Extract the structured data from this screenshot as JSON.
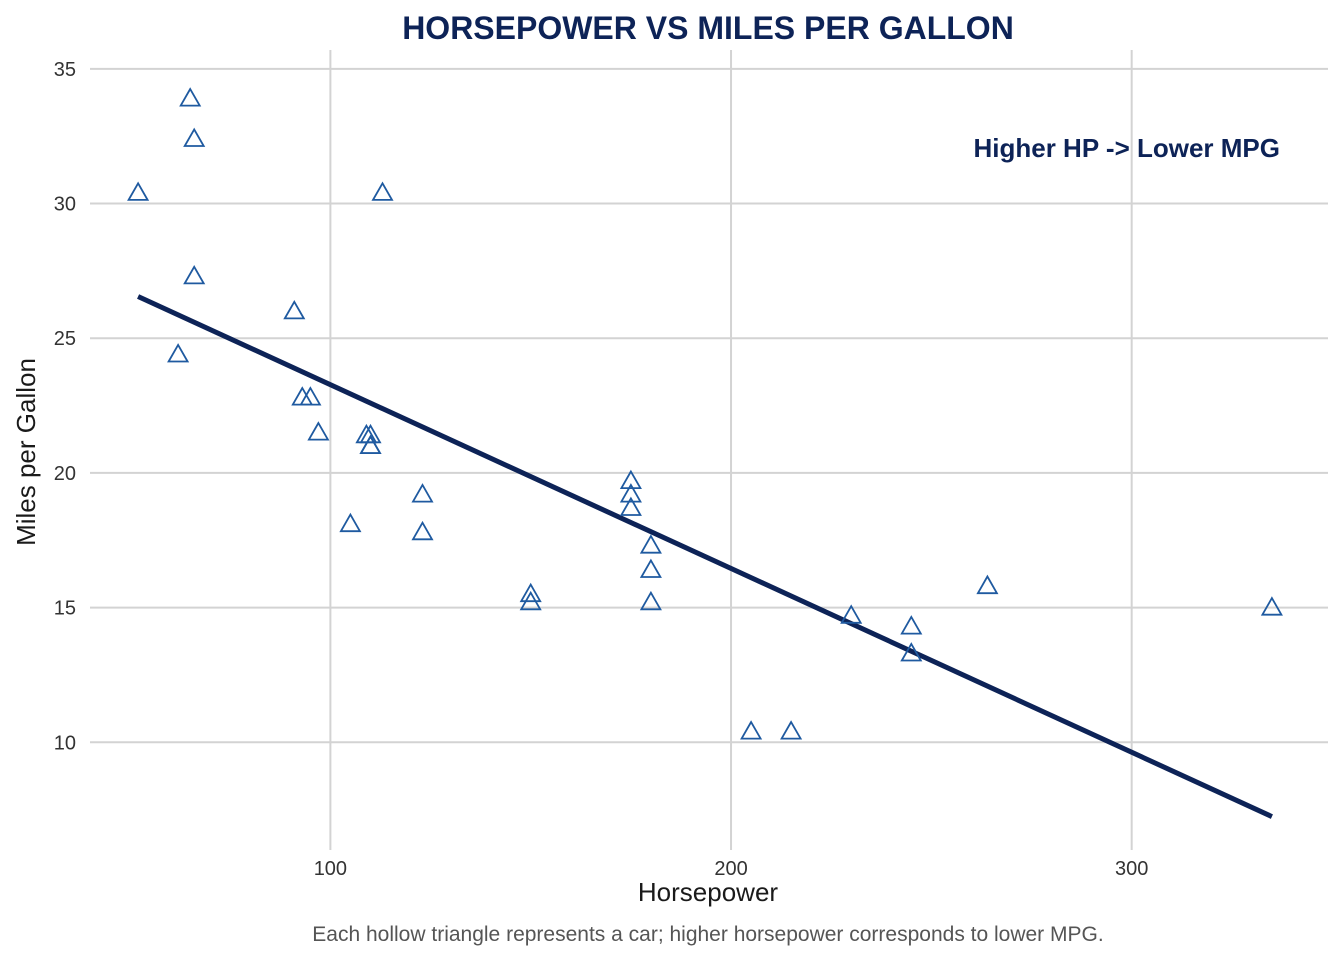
{
  "chart_data": {
    "type": "scatter",
    "title": "HORSEPOWER VS MILES PER GALLON",
    "xlabel": "Horsepower",
    "ylabel": "Miles per Gallon",
    "caption": "Each hollow triangle represents a car; higher horsepower corresponds to lower MPG.",
    "annotation": "Higher HP -> Lower MPG",
    "xlim": [
      40,
      349
    ],
    "ylim": [
      6,
      35.7
    ],
    "xticks": [
      100,
      200,
      300
    ],
    "yticks": [
      10,
      15,
      20,
      25,
      30,
      35
    ],
    "grid": true,
    "marker": "hollow-triangle",
    "colors": {
      "points": "#1f5aa0",
      "trend": "#0d2357",
      "title": "#0d2357",
      "grid": "#d3d3d3"
    },
    "points": [
      {
        "x": 110,
        "y": 21.0
      },
      {
        "x": 110,
        "y": 21.0
      },
      {
        "x": 93,
        "y": 22.8
      },
      {
        "x": 110,
        "y": 21.4
      },
      {
        "x": 175,
        "y": 18.7
      },
      {
        "x": 105,
        "y": 18.1
      },
      {
        "x": 245,
        "y": 14.3
      },
      {
        "x": 62,
        "y": 24.4
      },
      {
        "x": 95,
        "y": 22.8
      },
      {
        "x": 123,
        "y": 19.2
      },
      {
        "x": 123,
        "y": 17.8
      },
      {
        "x": 180,
        "y": 16.4
      },
      {
        "x": 180,
        "y": 17.3
      },
      {
        "x": 180,
        "y": 15.2
      },
      {
        "x": 205,
        "y": 10.4
      },
      {
        "x": 215,
        "y": 10.4
      },
      {
        "x": 230,
        "y": 14.7
      },
      {
        "x": 66,
        "y": 32.4
      },
      {
        "x": 52,
        "y": 30.4
      },
      {
        "x": 65,
        "y": 33.9
      },
      {
        "x": 97,
        "y": 21.5
      },
      {
        "x": 150,
        "y": 15.5
      },
      {
        "x": 150,
        "y": 15.2
      },
      {
        "x": 245,
        "y": 13.3
      },
      {
        "x": 175,
        "y": 19.2
      },
      {
        "x": 66,
        "y": 27.3
      },
      {
        "x": 91,
        "y": 26.0
      },
      {
        "x": 113,
        "y": 30.4
      },
      {
        "x": 264,
        "y": 15.8
      },
      {
        "x": 175,
        "y": 19.7
      },
      {
        "x": 335,
        "y": 15.0
      },
      {
        "x": 109,
        "y": 21.4
      }
    ],
    "trend_line": {
      "x": [
        52,
        335
      ],
      "y": [
        26.55,
        7.24
      ]
    }
  }
}
